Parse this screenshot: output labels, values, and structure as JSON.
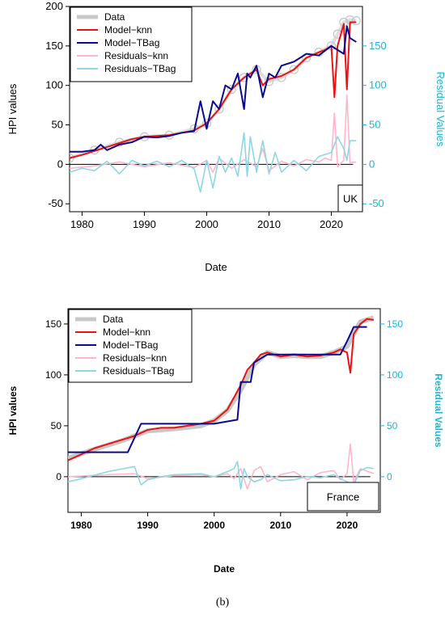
{
  "caption": "(b)",
  "colors": {
    "data": "#c8c8c8",
    "knn": "#ee1111",
    "tbag": "#0a0a8c",
    "res_knn": "#ffb6c8",
    "res_tbag": "#8fd6e6",
    "right_axis": "#1ab6d6"
  },
  "chart_data": [
    {
      "type": "line",
      "title": "",
      "region_label": "UK",
      "xlabel": "Date",
      "ylabel": "HPI values",
      "ylabel_right": "Residual Values",
      "xlim": [
        1978,
        2025
      ],
      "ylim": [
        -60,
        200
      ],
      "ylim_right": [
        -60,
        200
      ],
      "xticks": [
        1980,
        1990,
        2000,
        2010,
        2020
      ],
      "yticks": [
        -50,
        0,
        50,
        100,
        150,
        200
      ],
      "yticks_right": [
        -50,
        0,
        50,
        100,
        150
      ],
      "legend_position": "top-left",
      "legend": [
        "Data",
        "Model−knn",
        "Model−TBag",
        "Residuals−knn",
        "Residuals−TBag"
      ],
      "series": [
        {
          "name": "Data",
          "style": "circles",
          "color_key": "data",
          "x": [
            1978,
            1982,
            1986,
            1990,
            1994,
            1998,
            2000,
            2002,
            2004,
            2006,
            2008,
            2010,
            2012,
            2014,
            2016,
            2018,
            2020,
            2021,
            2022,
            2023,
            2024
          ],
          "y": [
            8,
            18,
            28,
            35,
            37,
            45,
            52,
            70,
            95,
            110,
            120,
            105,
            110,
            120,
            135,
            142,
            150,
            165,
            180,
            183,
            182
          ]
        },
        {
          "name": "Model−knn",
          "style": "line",
          "color_key": "knn",
          "x": [
            1978,
            1980,
            1982,
            1984,
            1986,
            1988,
            1990,
            1992,
            1994,
            1996,
            1998,
            2000,
            2002,
            2004,
            2006,
            2008,
            2009,
            2010,
            2012,
            2014,
            2016,
            2018,
            2019,
            2020,
            2020.5,
            2021,
            2022,
            2022.5,
            2023,
            2024
          ],
          "y": [
            8,
            12,
            17,
            22,
            27,
            32,
            35,
            36,
            37,
            40,
            43,
            52,
            70,
            95,
            110,
            120,
            100,
            108,
            112,
            120,
            135,
            142,
            145,
            150,
            85,
            150,
            178,
            95,
            180,
            180
          ]
        },
        {
          "name": "Model−TBag",
          "style": "line",
          "color_key": "tbag",
          "x": [
            1978,
            1980,
            1982,
            1983,
            1984,
            1986,
            1988,
            1990,
            1992,
            1994,
            1996,
            1998,
            1999,
            2000,
            2001,
            2002,
            2003,
            2004,
            2005,
            2006,
            2006.5,
            2007,
            2008,
            2009,
            2010,
            2011,
            2012,
            2014,
            2016,
            2018,
            2020,
            2021,
            2022,
            2022.5,
            2023,
            2024
          ],
          "y": [
            16,
            16,
            18,
            25,
            18,
            25,
            28,
            35,
            34,
            36,
            40,
            42,
            80,
            45,
            80,
            70,
            100,
            95,
            115,
            70,
            115,
            110,
            125,
            85,
            115,
            110,
            125,
            130,
            140,
            138,
            150,
            145,
            140,
            175,
            160,
            155
          ]
        },
        {
          "name": "Residuals−knn",
          "style": "line",
          "color_key": "res_knn",
          "x": [
            1978,
            1982,
            1986,
            1990,
            1994,
            1998,
            2000,
            2001,
            2002,
            2004,
            2006,
            2008,
            2009,
            2010,
            2012,
            2014,
            2016,
            2018,
            2019,
            2020,
            2020.5,
            2021,
            2022,
            2022.5,
            2023,
            2024
          ],
          "y": [
            -5,
            -2,
            3,
            -3,
            2,
            -4,
            5,
            -10,
            8,
            -5,
            6,
            -3,
            20,
            -8,
            4,
            -2,
            6,
            3,
            8,
            5,
            65,
            -3,
            5,
            88,
            2,
            3
          ]
        },
        {
          "name": "Residuals−TBag",
          "style": "line",
          "color_key": "res_tbag",
          "x": [
            1978,
            1980,
            1982,
            1984,
            1986,
            1988,
            1990,
            1992,
            1994,
            1996,
            1998,
            1999,
            2000,
            2001,
            2002,
            2003,
            2004,
            2005,
            2006,
            2006.5,
            2007,
            2008,
            2009,
            2010,
            2011,
            2012,
            2014,
            2016,
            2018,
            2020,
            2021,
            2022,
            2022.5,
            2023,
            2024
          ],
          "y": [
            -10,
            -5,
            -8,
            4,
            -12,
            5,
            -2,
            4,
            -3,
            5,
            -6,
            -35,
            5,
            -30,
            10,
            -10,
            8,
            -15,
            40,
            -15,
            35,
            -10,
            30,
            -12,
            15,
            -10,
            5,
            -8,
            10,
            15,
            35,
            20,
            5,
            30,
            30
          ]
        }
      ]
    },
    {
      "type": "line",
      "title": "",
      "region_label": "France",
      "xlabel": "Date",
      "ylabel": "HPI values",
      "ylabel_right": "Residual Values",
      "xlim": [
        1978,
        2025
      ],
      "ylim": [
        -35,
        165
      ],
      "ylim_right": [
        -35,
        165
      ],
      "xticks": [
        1980,
        1990,
        2000,
        2010,
        2020
      ],
      "yticks": [
        0,
        50,
        100,
        150
      ],
      "yticks_right": [
        0,
        50,
        100,
        150
      ],
      "legend_position": "top-left",
      "legend": [
        "Data",
        "Model−knn",
        "Model−TBag",
        "Residuals−knn",
        "Residuals−TBag"
      ],
      "series": [
        {
          "name": "Data",
          "style": "thick-line",
          "color_key": "data",
          "x": [
            1978,
            1982,
            1986,
            1990,
            1994,
            1998,
            2000,
            2002,
            2004,
            2006,
            2008,
            2010,
            2012,
            2014,
            2016,
            2018,
            2020,
            2022,
            2024
          ],
          "y": [
            18,
            27,
            35,
            45,
            47,
            50,
            55,
            65,
            85,
            110,
            122,
            118,
            119,
            118,
            118,
            122,
            128,
            152,
            156
          ]
        },
        {
          "name": "Model−knn",
          "style": "line",
          "color_key": "knn",
          "x": [
            1978,
            1980,
            1982,
            1984,
            1986,
            1988,
            1990,
            1992,
            1994,
            1996,
            1998,
            2000,
            2002,
            2004,
            2005,
            2006,
            2007,
            2008,
            2010,
            2012,
            2014,
            2016,
            2018,
            2019,
            2020,
            2020.5,
            2021,
            2022,
            2023,
            2024
          ],
          "y": [
            16,
            22,
            28,
            32,
            36,
            40,
            46,
            48,
            48,
            50,
            52,
            55,
            66,
            90,
            105,
            112,
            120,
            122,
            118,
            120,
            118,
            119,
            122,
            125,
            122,
            102,
            140,
            150,
            155,
            154
          ]
        },
        {
          "name": "Model−TBag",
          "style": "line",
          "color_key": "tbag",
          "x": [
            1978,
            1979,
            1987,
            1988,
            1989,
            1999,
            2000,
            2003.5,
            2004,
            2005.5,
            2006,
            2008,
            2009,
            2019,
            2020,
            2021,
            2023
          ],
          "y": [
            24,
            24,
            24,
            38,
            52,
            52,
            52,
            56,
            93,
            93,
            112,
            120,
            120,
            120,
            133,
            147,
            147
          ]
        },
        {
          "name": "Residuals−knn",
          "style": "line",
          "color_key": "res_knn",
          "x": [
            1978,
            1984,
            1988,
            1990,
            1994,
            1998,
            2000,
            2002,
            2003,
            2004,
            2005,
            2006,
            2007,
            2008,
            2010,
            2012,
            2014,
            2016,
            2018,
            2019,
            2020,
            2020.5,
            2021,
            2022,
            2024
          ],
          "y": [
            0,
            2,
            3,
            -2,
            1,
            2,
            0,
            3,
            -2,
            8,
            -12,
            6,
            10,
            -5,
            2,
            5,
            -3,
            4,
            6,
            -3,
            3,
            32,
            -5,
            8,
            3
          ]
        },
        {
          "name": "Residuals−TBag",
          "style": "line",
          "color_key": "res_tbag",
          "x": [
            1978,
            1980,
            1984,
            1988,
            1989,
            1990,
            1992,
            1994,
            1998,
            2000,
            2002,
            2003,
            2003.5,
            2004,
            2004.5,
            2005,
            2006,
            2007,
            2008,
            2010,
            2012,
            2014,
            2016,
            2018,
            2019,
            2020,
            2021,
            2022,
            2023,
            2024
          ],
          "y": [
            -5,
            -2,
            5,
            10,
            -8,
            -3,
            0,
            2,
            3,
            0,
            5,
            8,
            15,
            -12,
            8,
            0,
            -5,
            -3,
            2,
            -4,
            -3,
            0,
            -1,
            2,
            -2,
            -5,
            -8,
            6,
            9,
            8
          ]
        }
      ]
    }
  ]
}
